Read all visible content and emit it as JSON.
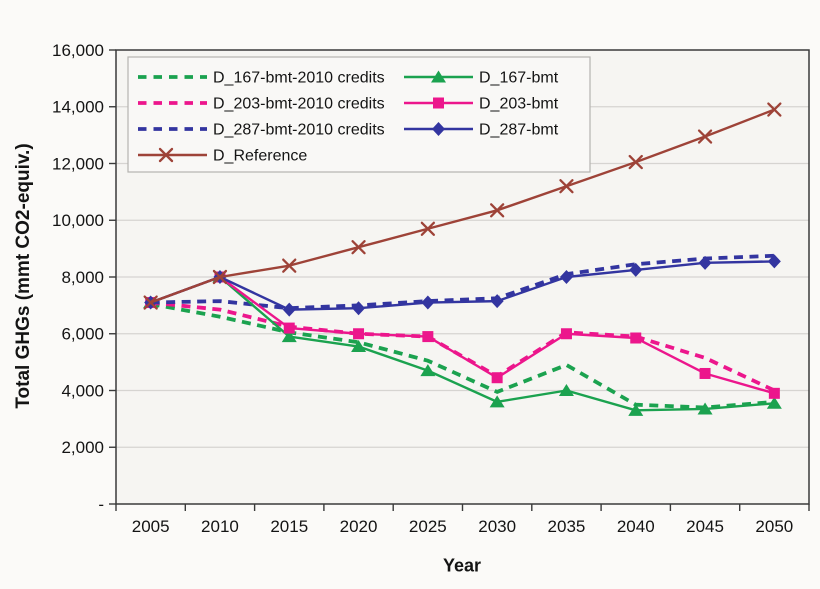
{
  "figure": {
    "background": "#fbfaf8",
    "plot_background": "#f6f5f2",
    "grid_color": "#d6d4d1",
    "axis_color": "#3a3a3a",
    "text_color": "#141414",
    "legend_border": "#b5b3b0",
    "legend_background": "#f9f8f6"
  },
  "chart_data": {
    "type": "line",
    "title": "",
    "xlabel": "Year",
    "ylabel": "Total GHGs (mmt CO2-equiv.)",
    "x": [
      2005,
      2010,
      2015,
      2020,
      2025,
      2030,
      2035,
      2040,
      2045,
      2050
    ],
    "ylim": [
      0,
      16000
    ],
    "grid": true,
    "legend_position": "top-left",
    "legend_columns": 2,
    "yticks": [
      {
        "value": 0,
        "label": "-"
      },
      {
        "value": 2000,
        "label": "2,000"
      },
      {
        "value": 4000,
        "label": "4,000"
      },
      {
        "value": 6000,
        "label": "6,000"
      },
      {
        "value": 8000,
        "label": "8,000"
      },
      {
        "value": 10000,
        "label": "10,000"
      },
      {
        "value": 12000,
        "label": "12,000"
      },
      {
        "value": 14000,
        "label": "14,000"
      },
      {
        "value": 16000,
        "label": "16,000"
      }
    ],
    "series": [
      {
        "name": "D_167-bmt-2010 credits",
        "color": "#1ba24f",
        "line_style": "dashed",
        "marker": "none",
        "values": [
          7050,
          6600,
          6050,
          5700,
          5050,
          3950,
          4900,
          3500,
          3400,
          3600
        ]
      },
      {
        "name": "D_167-bmt",
        "color": "#1ba24f",
        "line_style": "solid",
        "marker": "triangle",
        "values": [
          7100,
          8000,
          5900,
          5550,
          4700,
          3600,
          4000,
          3300,
          3350,
          3550
        ]
      },
      {
        "name": "D_203-bmt-2010 credits",
        "color": "#ec168c",
        "line_style": "dashed",
        "marker": "none",
        "values": [
          7100,
          6850,
          6250,
          6000,
          5900,
          4500,
          6050,
          5900,
          5150,
          4000
        ]
      },
      {
        "name": "D_203-bmt",
        "color": "#ec168c",
        "line_style": "solid",
        "marker": "square",
        "values": [
          7100,
          8000,
          6200,
          6000,
          5900,
          4450,
          6000,
          5850,
          4600,
          3900
        ]
      },
      {
        "name": "D_287-bmt-2010 credits",
        "color": "#3335a0",
        "line_style": "dashed",
        "marker": "none",
        "values": [
          7100,
          7150,
          6900,
          7000,
          7150,
          7250,
          8100,
          8450,
          8650,
          8750
        ]
      },
      {
        "name": "D_287-bmt",
        "color": "#3335a0",
        "line_style": "solid",
        "marker": "diamond",
        "values": [
          7100,
          8000,
          6850,
          6900,
          7100,
          7150,
          8000,
          8250,
          8500,
          8550
        ]
      },
      {
        "name": "D_Reference",
        "color": "#9e4338",
        "line_style": "solid",
        "marker": "x",
        "values": [
          7100,
          8000,
          8400,
          9050,
          9700,
          10350,
          11200,
          12050,
          12950,
          13900
        ]
      }
    ]
  }
}
